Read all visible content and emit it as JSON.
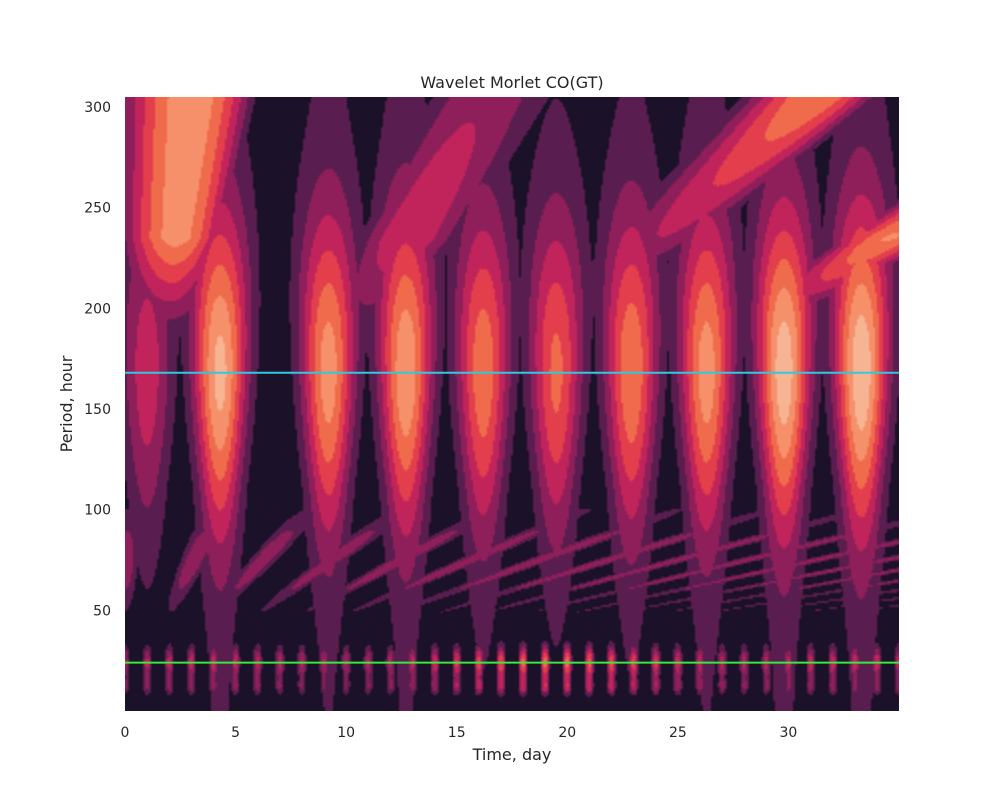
{
  "chart_data": {
    "type": "heatmap",
    "title": "Wavelet Morlet CO(GT)",
    "xlabel": "Time, day",
    "ylabel": "Period, hour",
    "xlim": [
      0,
      35
    ],
    "ylim": [
      0,
      305
    ],
    "xticks": [
      0,
      5,
      10,
      15,
      20,
      25,
      30
    ],
    "yticks": [
      50,
      100,
      150,
      200,
      250,
      300
    ],
    "colormap": [
      "#1b1129",
      "#5a1d4f",
      "#8e1f5a",
      "#c1245a",
      "#e23e4c",
      "#f06a4c",
      "#f5906a",
      "#f7b493"
    ],
    "reference_lines": [
      {
        "period": 168,
        "color": "#31c8e0"
      },
      {
        "period": 24,
        "color": "#39e83a"
      }
    ],
    "ridge_peaks_168h": [
      {
        "day": 1.0,
        "level": 0.45
      },
      {
        "day": 4.3,
        "level": 0.92
      },
      {
        "day": 9.2,
        "level": 0.82
      },
      {
        "day": 12.7,
        "level": 0.86
      },
      {
        "day": 16.2,
        "level": 0.72
      },
      {
        "day": 19.5,
        "level": 0.66
      },
      {
        "day": 22.9,
        "level": 0.74
      },
      {
        "day": 26.3,
        "level": 0.82
      },
      {
        "day": 29.8,
        "level": 0.96
      },
      {
        "day": 33.3,
        "level": 0.98
      }
    ],
    "daily_band_peak_day": 19.5
  }
}
